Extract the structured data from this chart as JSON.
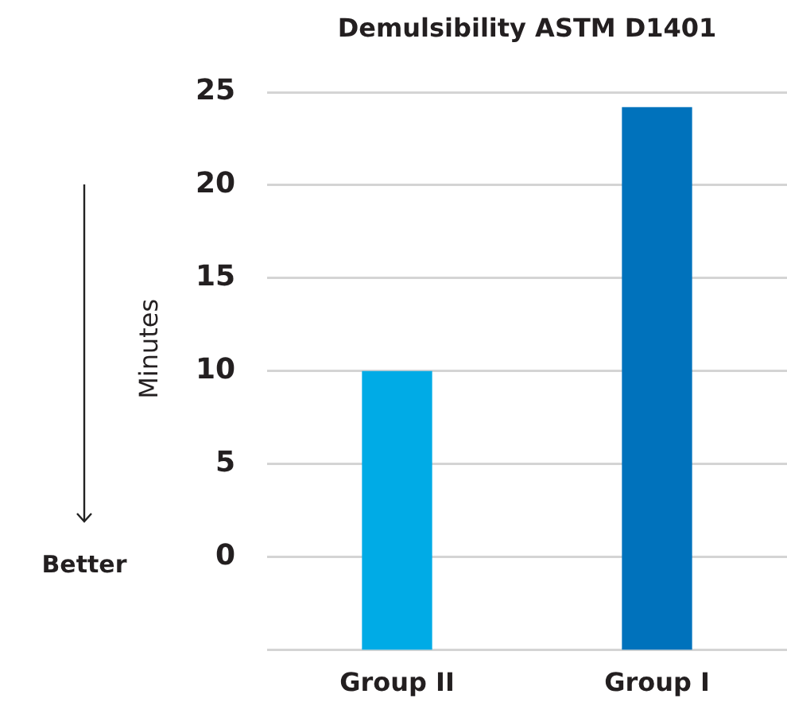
{
  "chart_data": {
    "type": "bar",
    "title": "Demulsibility ASTM D1401",
    "ylabel": "Minutes",
    "categories": [
      "Group II",
      "Group I"
    ],
    "values": [
      15,
      29.2
    ],
    "base": [
      -5,
      -5
    ],
    "colors": [
      "#00abe6",
      "#0072bc"
    ],
    "ylim": [
      -5,
      25
    ],
    "yticks": [
      {
        "value": -5,
        "label": null
      },
      0,
      5,
      10,
      15,
      20,
      25
    ],
    "grid": "y",
    "legend": false,
    "annotations": [
      "Better"
    ]
  }
}
